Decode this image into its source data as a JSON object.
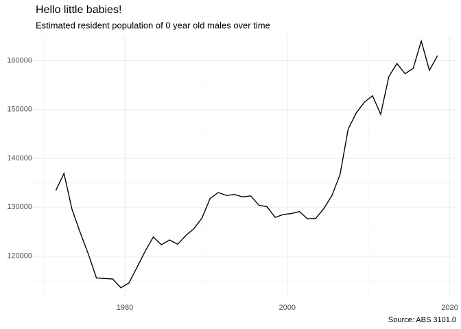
{
  "chart_data": {
    "type": "line",
    "title": "Hello little babies!",
    "subtitle": "Estimated resident population of 0 year old males over time",
    "caption": "Source: ABS 3101.0",
    "x": [
      1971.5,
      1972.5,
      1973.5,
      1974.5,
      1975.5,
      1976.5,
      1977.5,
      1978.5,
      1979.5,
      1980.5,
      1981.5,
      1982.5,
      1983.5,
      1984.5,
      1985.5,
      1986.5,
      1987.5,
      1988.5,
      1989.5,
      1990.5,
      1991.5,
      1992.5,
      1993.5,
      1994.5,
      1995.5,
      1996.5,
      1997.5,
      1998.5,
      1999.5,
      2000.5,
      2001.5,
      2002.5,
      2003.5,
      2004.5,
      2005.5,
      2006.5,
      2007.5,
      2008.5,
      2009.5,
      2010.5,
      2011.5,
      2012.5,
      2013.5,
      2014.5,
      2015.5,
      2016.5,
      2017.5,
      2018.5
    ],
    "series": [
      {
        "color": "#000000",
        "values": [
          133430,
          136900,
          129500,
          124800,
          120400,
          115500,
          115400,
          115300,
          113500,
          114500,
          117700,
          121000,
          123900,
          122300,
          123300,
          122400,
          124200,
          125600,
          127800,
          131800,
          133000,
          132400,
          132600,
          132100,
          132300,
          130400,
          130100,
          127900,
          128500,
          128700,
          129100,
          127600,
          127700,
          129700,
          132400,
          136700,
          146000,
          149300,
          151500,
          152800,
          149000,
          156700,
          159400,
          157300,
          158400,
          164000,
          158000,
          161000
        ]
      }
    ],
    "xlim": [
      1968,
      2020.8
    ],
    "ylim": [
      111800,
      165100
    ],
    "xticks": [
      1980,
      2000,
      2020
    ],
    "yticks": [
      120000,
      130000,
      140000,
      150000,
      160000
    ],
    "x_minor_ticks": [
      1970,
      1990,
      2010
    ],
    "y_minor_ticks": [
      115000,
      125000,
      135000,
      145000,
      155000,
      165000
    ],
    "grid": true
  }
}
